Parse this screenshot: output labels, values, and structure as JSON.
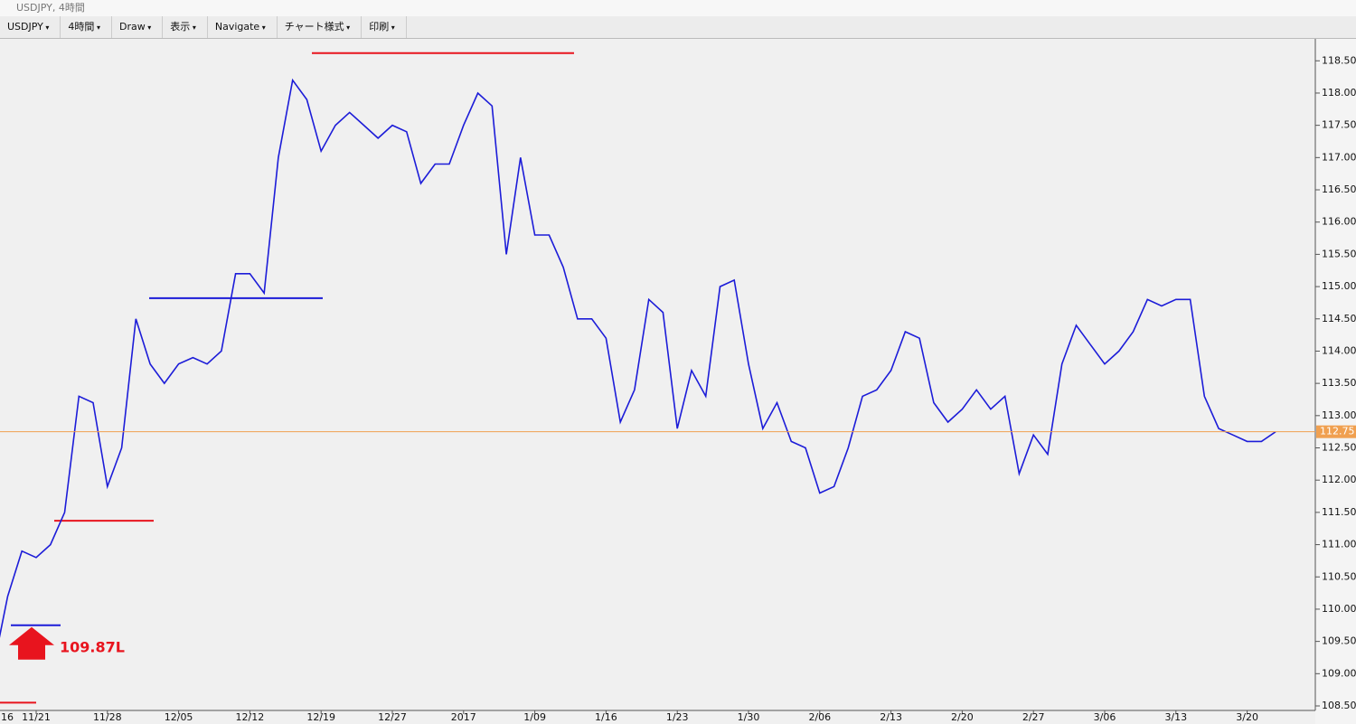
{
  "window": {
    "title": "USDJPY, 4時間"
  },
  "toolbar": {
    "items": [
      "USDJPY",
      "4時間",
      "Draw",
      "表示",
      "Navigate",
      "チャート様式",
      "印刷"
    ]
  },
  "chart_data": {
    "type": "line",
    "categories": [
      "16",
      null,
      null,
      "11/21",
      null,
      null,
      null,
      null,
      "11/28",
      null,
      null,
      null,
      null,
      "12/05",
      null,
      null,
      null,
      null,
      "12/12",
      null,
      null,
      null,
      null,
      "12/19",
      null,
      null,
      null,
      null,
      "12/27",
      null,
      null,
      null,
      null,
      "2017",
      null,
      null,
      null,
      null,
      "1/09",
      null,
      null,
      null,
      null,
      "1/16",
      null,
      null,
      null,
      null,
      "1/23",
      null,
      null,
      null,
      null,
      "1/30",
      null,
      null,
      null,
      null,
      "2/06",
      null,
      null,
      null,
      null,
      "2/13",
      null,
      null,
      null,
      null,
      "2/20",
      null,
      null,
      null,
      null,
      "2/27",
      null,
      null,
      null,
      null,
      "3/06",
      null,
      null,
      null,
      null,
      "3/13",
      null,
      null,
      null,
      null,
      "3/20",
      null,
      null
    ],
    "series": [
      {
        "name": "USDJPY",
        "color": "#1c1cd8",
        "values": [
          109.1,
          110.2,
          110.9,
          110.8,
          111.0,
          111.5,
          113.3,
          113.2,
          111.9,
          112.5,
          114.5,
          113.8,
          113.5,
          113.8,
          113.9,
          113.8,
          114.0,
          115.2,
          115.2,
          114.9,
          117.0,
          118.2,
          117.9,
          117.1,
          117.5,
          117.7,
          117.5,
          117.3,
          117.5,
          117.4,
          116.6,
          116.9,
          116.9,
          117.5,
          118.0,
          117.8,
          115.5,
          117.0,
          115.8,
          115.8,
          115.3,
          114.5,
          114.5,
          114.2,
          112.9,
          113.4,
          114.8,
          114.6,
          112.8,
          113.7,
          113.3,
          115.0,
          115.1,
          113.8,
          112.8,
          113.2,
          112.6,
          112.5,
          111.8,
          111.9,
          112.5,
          113.3,
          113.4,
          113.7,
          114.3,
          114.2,
          113.2,
          112.9,
          113.1,
          113.4,
          113.1,
          113.3,
          112.1,
          112.7,
          112.4,
          113.8,
          114.4,
          114.1,
          113.8,
          114.0,
          114.3,
          114.8,
          114.7,
          114.8,
          114.8,
          113.3,
          112.8,
          112.7,
          112.6,
          112.6,
          112.75
        ]
      }
    ],
    "levels": [
      {
        "value": 118.62,
        "color": "#e8141e"
      },
      {
        "value": 114.82,
        "color": "#1c1cd8"
      },
      {
        "value": 111.37,
        "color": "#e8141e"
      },
      {
        "value": 109.75,
        "color": "#1c1cd8"
      },
      {
        "value": 108.55,
        "color": "#e8141e"
      }
    ],
    "current_price": {
      "value": 112.75,
      "label": "112.75",
      "color": "#f0a050"
    },
    "annotation": "109.87L",
    "ylim": [
      108.43,
      118.84
    ],
    "yticks": [
      {
        "value": 108.5,
        "label": "108.50"
      },
      {
        "value": 109,
        "label": "109.00"
      },
      {
        "value": 109.5,
        "label": "109.50"
      },
      {
        "value": 110,
        "label": "110.00"
      },
      {
        "value": 110.5,
        "label": "110.50"
      },
      {
        "value": 111,
        "label": "111.00"
      },
      {
        "value": 111.5,
        "label": "111.50"
      },
      {
        "value": 112,
        "label": "112.00"
      },
      {
        "value": 112.5,
        "label": "112.50"
      },
      {
        "value": 113,
        "label": "113.00"
      },
      {
        "value": 113.5,
        "label": "113.50"
      },
      {
        "value": 114,
        "label": "114.00"
      },
      {
        "value": 114.5,
        "label": "114.50"
      },
      {
        "value": 115,
        "label": "115.00"
      },
      {
        "value": 115.5,
        "label": "115.50"
      },
      {
        "value": 116,
        "label": "116.00"
      },
      {
        "value": 116.5,
        "label": "116.50"
      },
      {
        "value": 117,
        "label": "117.00"
      },
      {
        "value": 117.5,
        "label": "117.50"
      },
      {
        "value": 118,
        "label": "118.00"
      },
      {
        "value": 118.5,
        "label": "118.50"
      }
    ]
  }
}
